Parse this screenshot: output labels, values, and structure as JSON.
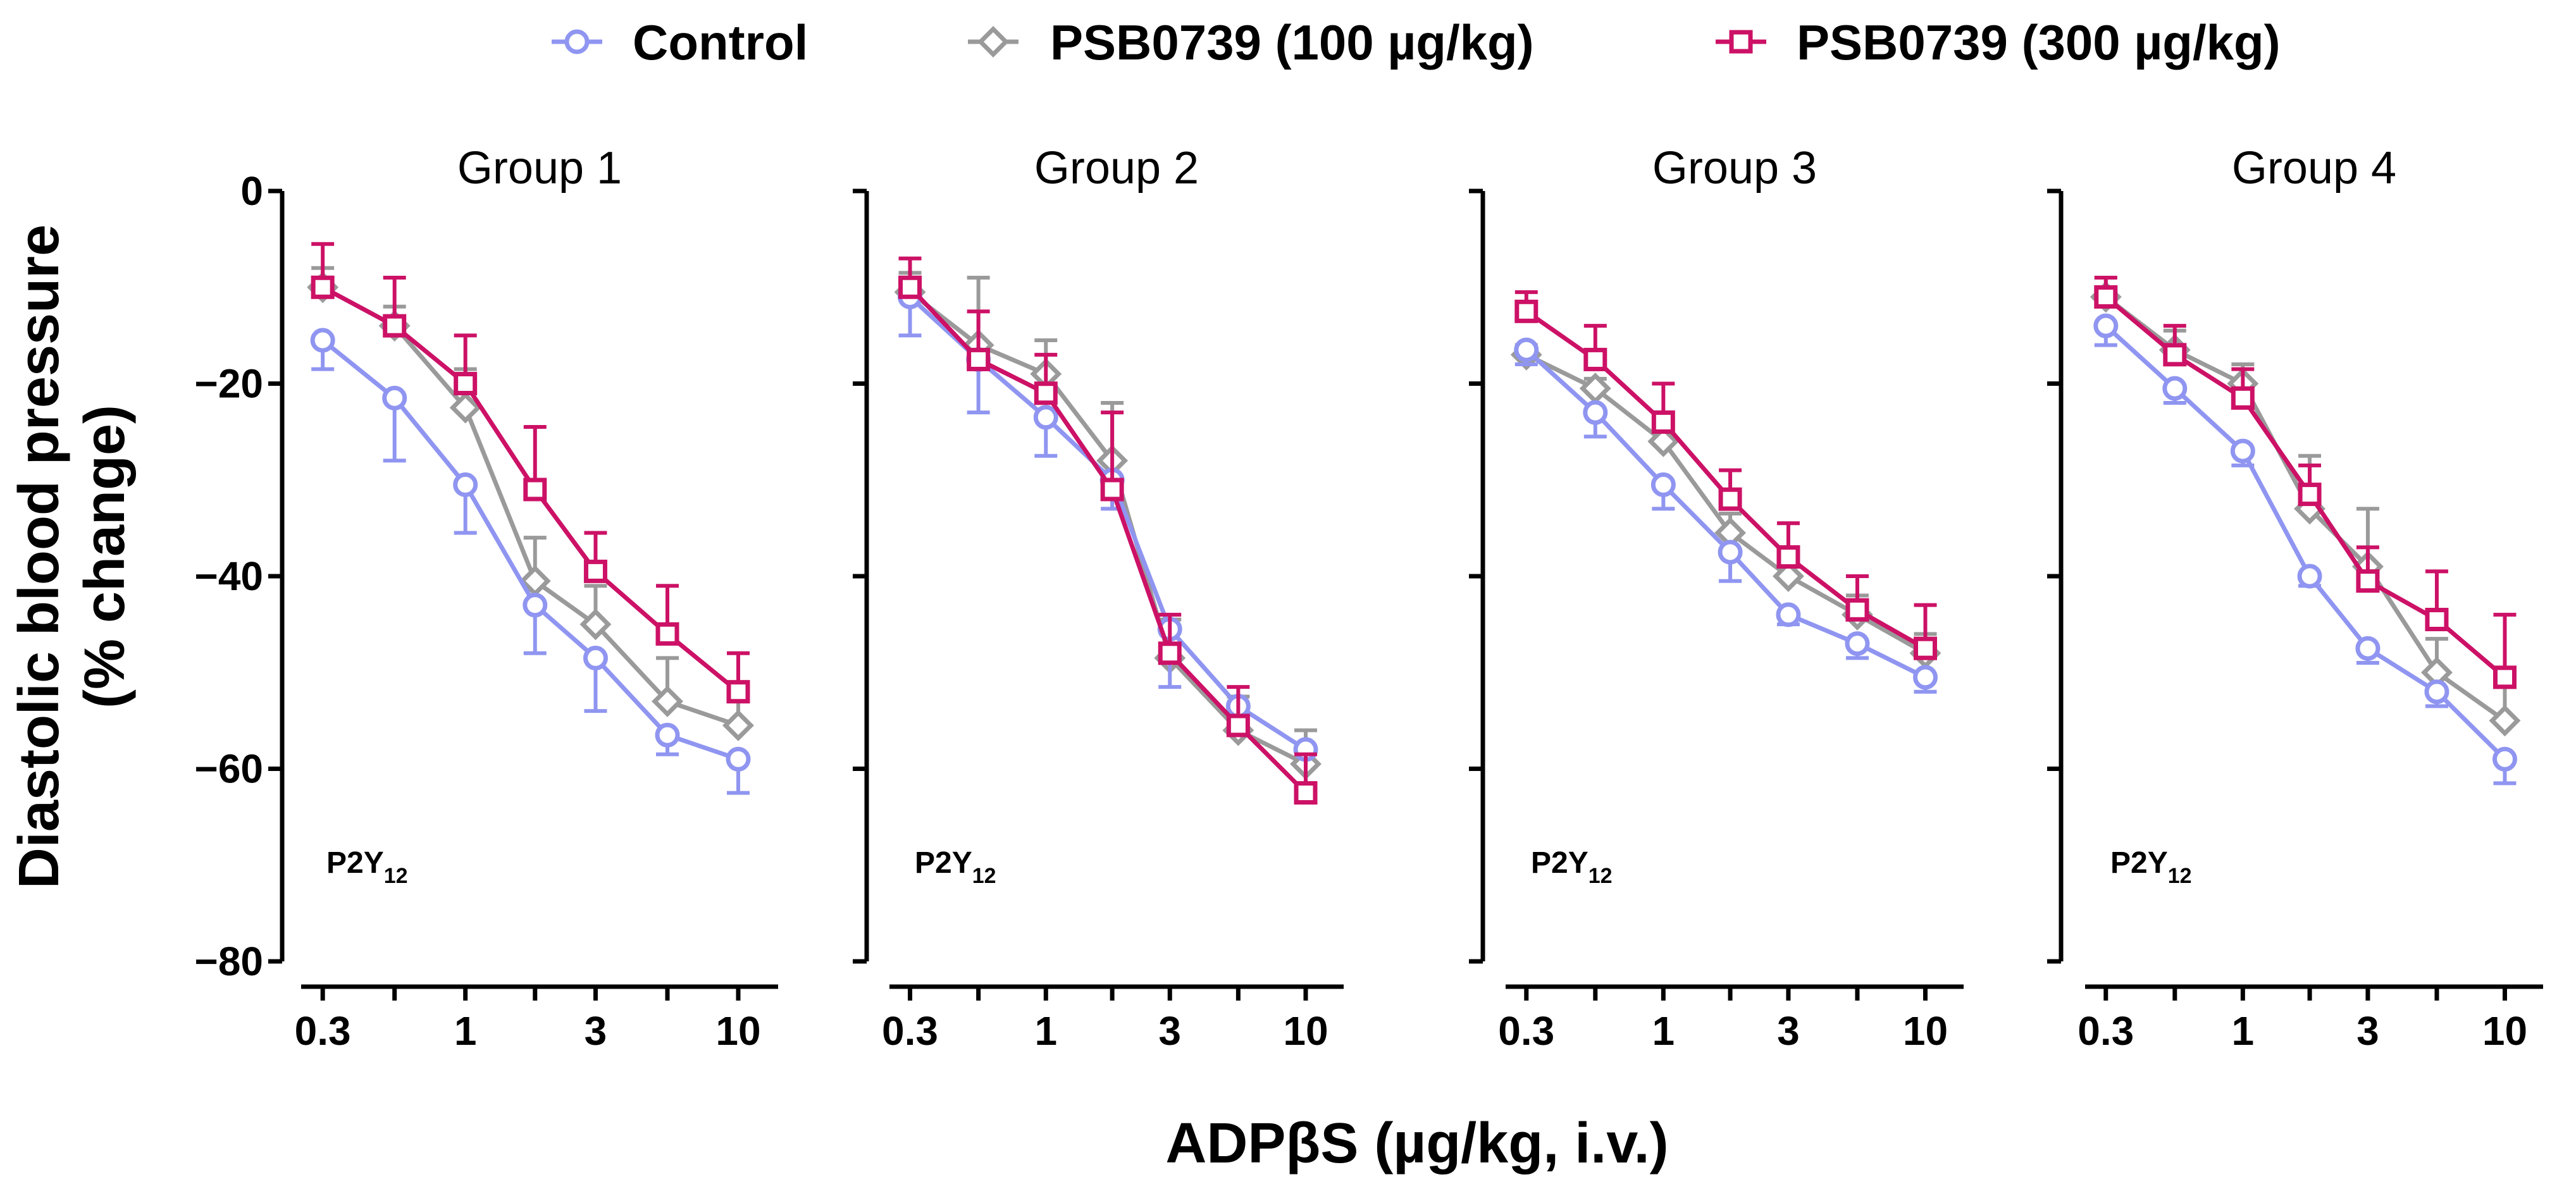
{
  "chart_data": {
    "type": "line",
    "legend": {
      "position": "top",
      "entries": [
        {
          "name": "Control",
          "marker": "circle",
          "color": "#8f95f0"
        },
        {
          "name": "PSB0739 (100 µg/kg)",
          "marker": "diamond",
          "color": "#9a9a9a"
        },
        {
          "name": "PSB0739 (300 µg/kg)",
          "marker": "square",
          "color": "#cc1166"
        }
      ]
    },
    "ylabel_line1": "Diastolic blood pressure",
    "ylabel_line2": "(% change)",
    "xlabel": "ADPβS (µg/kg, i.v.)",
    "xscale": "log",
    "xlim": [
      0.25,
      14
    ],
    "x_ticks": [
      0.3,
      1,
      3,
      10
    ],
    "x_tick_labels": [
      "0.3",
      "1",
      "3",
      "10"
    ],
    "ylim": [
      -80,
      0
    ],
    "y_ticks": [
      0,
      -20,
      -40,
      -60,
      -80
    ],
    "y_tick_labels": [
      "0",
      "−20",
      "−40",
      "−60",
      "−80"
    ],
    "x": [
      0.3,
      0.55,
      1,
      1.8,
      3,
      5.5,
      10
    ],
    "panels": [
      {
        "title": "Group 1",
        "note_main": "P2Y",
        "note_sub": "12",
        "series": [
          {
            "name": "Control",
            "values": [
              -15.5,
              -21.5,
              -30.5,
              -43,
              -48.5,
              -56.5,
              -59
            ],
            "errors": [
              3,
              6.5,
              5,
              5,
              5.5,
              2,
              3.5
            ]
          },
          {
            "name": "PSB0739 (100 µg/kg)",
            "values": [
              -10,
              -14,
              -22.5,
              -40.5,
              -45,
              -53,
              -55.5
            ],
            "errors": [
              2,
              2,
              4,
              4.5,
              4,
              4.5,
              4
            ]
          },
          {
            "name": "PSB0739 (300 µg/kg)",
            "values": [
              -10,
              -14,
              -20,
              -31,
              -39.5,
              -46,
              -52
            ],
            "errors": [
              4.5,
              5,
              5,
              6.5,
              4,
              5,
              4
            ]
          }
        ]
      },
      {
        "title": "Group 2",
        "note_main": "P2Y",
        "note_sub": "12",
        "series": [
          {
            "name": "Control",
            "values": [
              -11,
              -17.5,
              -23.5,
              -30,
              -45.5,
              -53.5,
              -58
            ],
            "errors": [
              4,
              5.5,
              4,
              3,
              6,
              2,
              5
            ]
          },
          {
            "name": "PSB0739 (100 µg/kg)",
            "values": [
              -10.5,
              -16,
              -19,
              -28,
              -48.5,
              -56,
              -59.5
            ],
            "errors": [
              2,
              7,
              3.5,
              6,
              4,
              3.5,
              3.5
            ]
          },
          {
            "name": "PSB0739 (300 µg/kg)",
            "values": [
              -10,
              -17.5,
              -21,
              -31,
              -48,
              -55.5,
              -62.5
            ],
            "errors": [
              3,
              5,
              4,
              8,
              4,
              4,
              4
            ]
          }
        ]
      },
      {
        "title": "Group 3",
        "note_main": "P2Y",
        "note_sub": "12",
        "series": [
          {
            "name": "Control",
            "values": [
              -16.5,
              -23,
              -30.5,
              -37.5,
              -44,
              -47,
              -50.5
            ],
            "errors": [
              1.5,
              2.5,
              2.5,
              3,
              1,
              1.5,
              1.5
            ]
          },
          {
            "name": "PSB0739 (100 µg/kg)",
            "values": [
              -17,
              -20.5,
              -26,
              -35.5,
              -40,
              -44,
              -48
            ],
            "errors": [
              1,
              1,
              1.5,
              2,
              2,
              2,
              2
            ]
          },
          {
            "name": "PSB0739 (300 µg/kg)",
            "values": [
              -12.5,
              -17.5,
              -24,
              -32,
              -38,
              -43.5,
              -47.5
            ],
            "errors": [
              2,
              3.5,
              4,
              3,
              3.5,
              3.5,
              4.5
            ]
          }
        ]
      },
      {
        "title": "Group 4",
        "note_main": "P2Y",
        "note_sub": "12",
        "series": [
          {
            "name": "Control",
            "values": [
              -14,
              -20.5,
              -27,
              -40,
              -47.5,
              -52,
              -59
            ],
            "errors": [
              2,
              1.5,
              1.5,
              1,
              1.5,
              1.5,
              2.5
            ]
          },
          {
            "name": "PSB0739 (100 µg/kg)",
            "values": [
              -11,
              -16.5,
              -20,
              -33,
              -39,
              -50,
              -55
            ],
            "errors": [
              2,
              2,
              2,
              5.5,
              6,
              3.5,
              3.5
            ]
          },
          {
            "name": "PSB0739 (300 µg/kg)",
            "values": [
              -11,
              -17,
              -21.5,
              -31.5,
              -40.5,
              -44.5,
              -50.5
            ],
            "errors": [
              2,
              3,
              3,
              3,
              3.5,
              5,
              6.5
            ]
          }
        ]
      }
    ]
  }
}
